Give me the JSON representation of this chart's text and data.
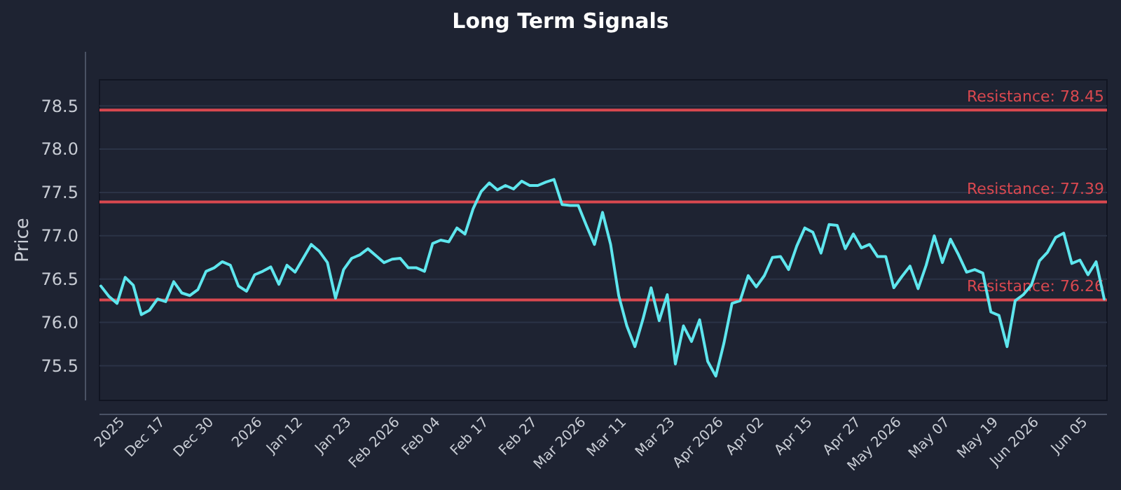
{
  "chart_data": {
    "type": "line",
    "title": "Long Term Signals",
    "ylabel": "Price",
    "categories": [
      null,
      null,
      null,
      "2025",
      null,
      null,
      null,
      null,
      "Dec 17",
      null,
      null,
      null,
      null,
      null,
      "Dec 30",
      null,
      null,
      null,
      null,
      null,
      "2026",
      null,
      null,
      null,
      null,
      "Jan 12",
      null,
      null,
      null,
      null,
      null,
      "Jan 23",
      null,
      null,
      null,
      null,
      null,
      "Feb 2026",
      null,
      null,
      null,
      null,
      "Feb 04",
      null,
      null,
      null,
      null,
      null,
      "Feb 17",
      null,
      null,
      null,
      null,
      null,
      "Feb 27",
      null,
      null,
      null,
      null,
      null,
      "Mar 2026",
      null,
      null,
      null,
      null,
      "Mar 11",
      null,
      null,
      null,
      null,
      null,
      "Mar 23",
      null,
      null,
      null,
      null,
      null,
      "Apr 2026",
      null,
      null,
      null,
      null,
      "Apr 02",
      null,
      null,
      null,
      null,
      null,
      "Apr 15",
      null,
      null,
      null,
      null,
      null,
      "Apr 27",
      null,
      null,
      null,
      null,
      "May 2026",
      null,
      null,
      null,
      null,
      null,
      "May 07",
      null,
      null,
      null,
      null,
      null,
      "May 19",
      null,
      null,
      null,
      null,
      "Jun 2026",
      null,
      null,
      null,
      null,
      null,
      "Jun 05",
      null,
      null
    ],
    "series": [
      {
        "color": "#5ee6ee",
        "values": [
          76.42,
          76.3,
          76.22,
          76.52,
          76.43,
          76.09,
          76.14,
          76.27,
          76.24,
          76.47,
          76.34,
          76.31,
          76.38,
          76.59,
          76.63,
          76.7,
          76.66,
          76.42,
          76.36,
          76.55,
          76.59,
          76.64,
          76.44,
          76.66,
          76.58,
          76.74,
          76.9,
          76.82,
          76.69,
          76.28,
          76.61,
          76.74,
          76.78,
          76.85,
          76.77,
          76.69,
          76.73,
          76.74,
          76.63,
          76.63,
          76.59,
          76.91,
          76.95,
          76.93,
          77.09,
          77.02,
          77.31,
          77.51,
          77.61,
          77.53,
          77.58,
          77.54,
          77.63,
          77.58,
          77.58,
          77.62,
          77.65,
          77.36,
          77.35,
          77.35,
          77.12,
          76.9,
          77.27,
          76.9,
          76.31,
          75.96,
          75.72,
          76.04,
          76.4,
          76.02,
          76.32,
          75.52,
          75.96,
          75.78,
          76.03,
          75.55,
          75.38,
          75.76,
          76.22,
          76.25,
          76.54,
          76.41,
          76.54,
          76.75,
          76.76,
          76.61,
          76.88,
          77.09,
          77.04,
          76.8,
          77.13,
          77.12,
          76.85,
          77.02,
          76.86,
          76.9,
          76.76,
          76.76,
          76.4,
          76.53,
          76.65,
          76.39,
          76.66,
          77.0,
          76.69,
          76.96,
          76.78,
          76.58,
          76.61,
          76.57,
          76.12,
          76.08,
          75.72,
          76.25,
          76.32,
          76.43,
          76.71,
          76.81,
          76.98,
          77.03,
          76.68,
          76.72,
          76.55,
          76.7,
          76.27
        ]
      }
    ],
    "ylim": [
      75.1,
      78.8
    ],
    "yticks": [
      75.5,
      {
        "value": 76,
        "label": "76.0"
      },
      76.5,
      {
        "value": 77,
        "label": "77.0"
      },
      77.5,
      {
        "value": 78,
        "label": "78.0"
      },
      78.5
    ],
    "ref_lines": [
      {
        "axis": "y",
        "value": 78.45,
        "label": "Resistance: 78.45",
        "color": "#d9484f"
      },
      {
        "axis": "y",
        "value": 77.39,
        "label": "Resistance: 77.39",
        "color": "#d9484f"
      },
      {
        "axis": "y",
        "value": 76.26,
        "label": "Resistance: 76.26",
        "color": "#d9484f"
      }
    ],
    "grid": "y"
  }
}
